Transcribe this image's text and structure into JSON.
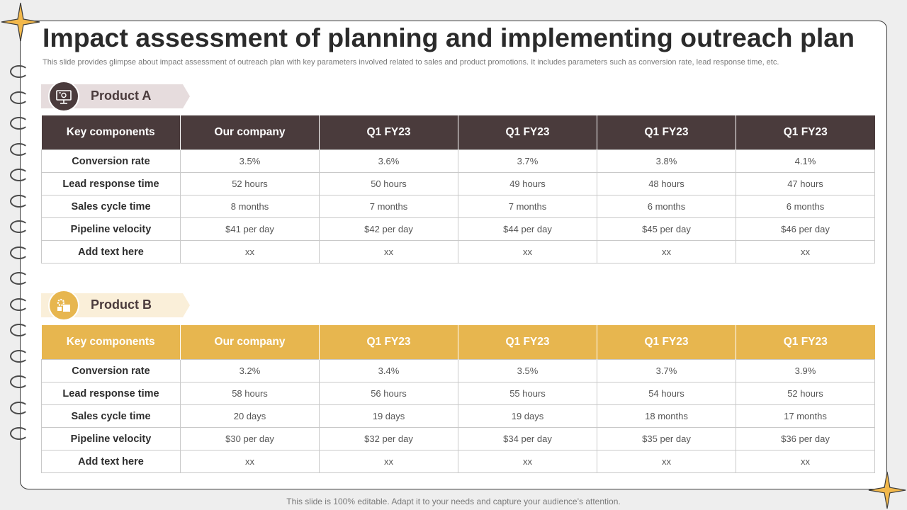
{
  "title": "Impact assessment of planning and implementing outreach plan",
  "subtitle": "This slide provides glimpse about impact assessment of outreach plan with key parameters involved related to sales and product promotions. It includes parameters such as conversion rate, lead response time, etc.",
  "footer": "This slide is 100% editable. Adapt it to your needs and capture your audience’s attention.",
  "colors": {
    "product_a_header": "#4a3b3c",
    "product_a_tag": "#e6dcdd",
    "product_b_header": "#e7b64f",
    "product_b_tag": "#faefd9",
    "accent_star": "#f2b84b"
  },
  "product_a": {
    "label": "Product A",
    "icon": "presentation-icon",
    "headers": [
      "Key components",
      "Our company",
      "Q1 FY23",
      "Q1 FY23",
      "Q1 FY23",
      "Q1 FY23"
    ],
    "rows": [
      [
        "Conversion rate",
        "3.5%",
        "3.6%",
        "3.7%",
        "3.8%",
        "4.1%"
      ],
      [
        "Lead response time",
        "52 hours",
        "50 hours",
        "49 hours",
        "48 hours",
        "47 hours"
      ],
      [
        "Sales cycle time",
        "8 months",
        "7 months",
        "7 months",
        "6 months",
        "6 months"
      ],
      [
        "Pipeline velocity",
        "$41 per day",
        "$42 per day",
        "$44 per day",
        "$45 per day",
        "$46 per day"
      ],
      [
        "Add text here",
        "xx",
        "xx",
        "xx",
        "xx",
        "xx"
      ]
    ]
  },
  "product_b": {
    "label": "Product B",
    "icon": "gear-boxes-icon",
    "headers": [
      "Key components",
      "Our company",
      "Q1 FY23",
      "Q1 FY23",
      "Q1 FY23",
      "Q1 FY23"
    ],
    "rows": [
      [
        "Conversion rate",
        "3.2%",
        "3.4%",
        "3.5%",
        "3.7%",
        "3.9%"
      ],
      [
        "Lead response time",
        "58 hours",
        "56 hours",
        "55 hours",
        "54 hours",
        "52 hours"
      ],
      [
        "Sales cycle time",
        "20 days",
        "19 days",
        "19 days",
        "18 months",
        "17 months"
      ],
      [
        "Pipeline velocity",
        "$30 per day",
        "$32 per day",
        "$34 per day",
        "$35 per day",
        "$36 per day"
      ],
      [
        "Add text here",
        "xx",
        "xx",
        "xx",
        "xx",
        "xx"
      ]
    ]
  }
}
